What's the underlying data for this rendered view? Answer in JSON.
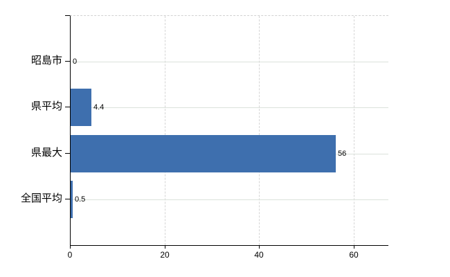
{
  "chart_data": {
    "type": "bar",
    "orientation": "horizontal",
    "title": "",
    "categories": [
      "昭島市",
      "県平均",
      "県最大",
      "全国平均"
    ],
    "values": [
      0,
      4.4,
      56,
      0.5
    ],
    "value_labels": [
      "0",
      "4.4",
      "56",
      "0.5"
    ],
    "x_tick_labels": [
      "0",
      "20",
      "40",
      "60"
    ],
    "x_tick_values": [
      0,
      20,
      40,
      60
    ],
    "xlim": [
      0,
      67.2
    ],
    "bar_color": "#3e6fae",
    "axis_color": "#000000",
    "h_gridline_color": "#dbe2db",
    "v_gridline_color": "#d5d5d5",
    "grid": true,
    "legend": false
  }
}
